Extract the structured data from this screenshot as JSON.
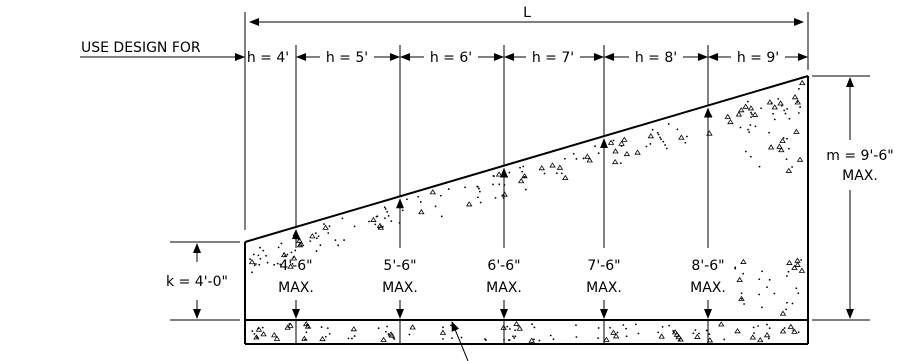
{
  "labels": {
    "length": "L",
    "use_design_for": "USE DESIGN FOR",
    "k_value": "k = 4'-0\"",
    "m_value": "m = 9'-6\"",
    "m_max": "MAX."
  },
  "segments": [
    {
      "h": "h = 4'",
      "height": "4'-6\"",
      "max": "MAX."
    },
    {
      "h": "h = 5'",
      "height": "5'-6\"",
      "max": "MAX."
    },
    {
      "h": "h = 6'",
      "height": "6'-6\"",
      "max": "MAX."
    },
    {
      "h": "h = 7'",
      "height": "7'-6\"",
      "max": "MAX."
    },
    {
      "h": "h = 8'",
      "height": "8'-6\"",
      "max": "MAX."
    },
    {
      "h": "h = 9'",
      "height": "",
      "max": ""
    }
  ]
}
